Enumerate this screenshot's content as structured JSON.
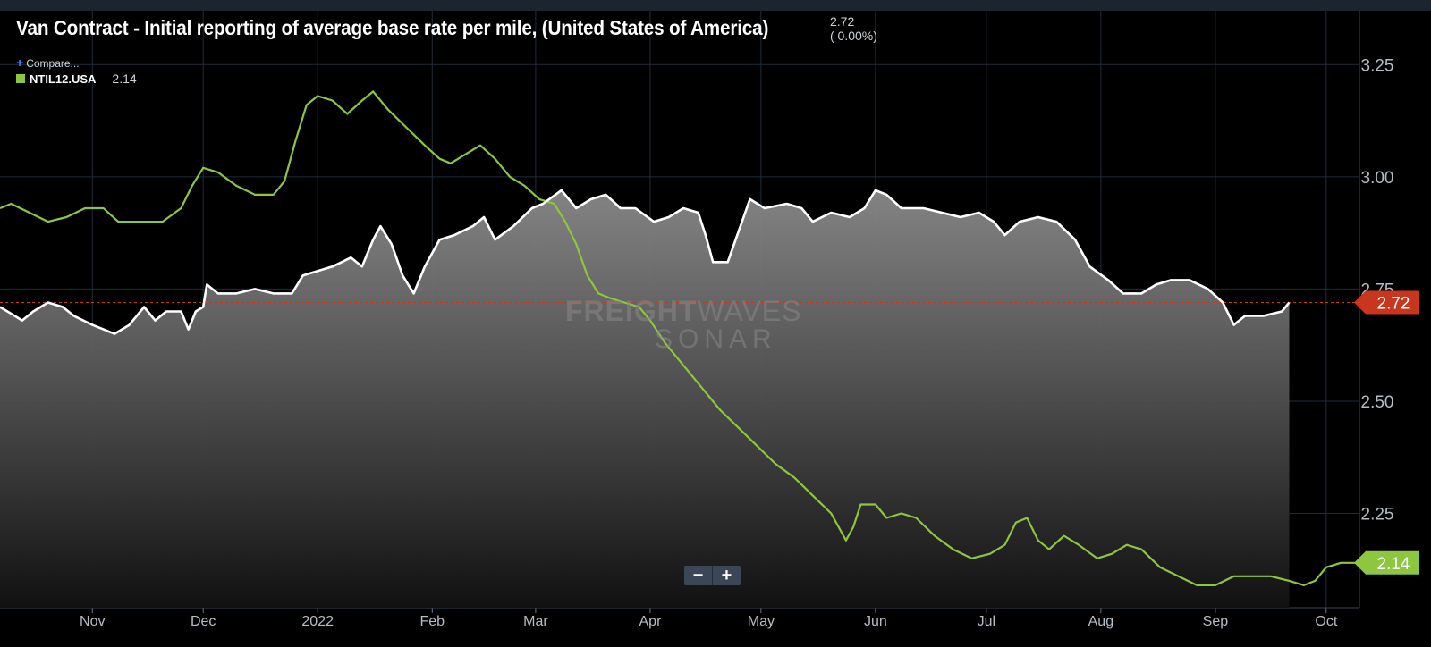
{
  "header": {
    "title": "Van Contract - Initial reporting of average base rate per mile, (United States of America)",
    "value": "2.72",
    "change": "( 0.00%)"
  },
  "legend": {
    "compare_label": "Compare...",
    "series_label": "NTIL12.USA",
    "series_value": "2.14"
  },
  "watermark": {
    "line1_bold": "FREIGHT",
    "line1_light": "WAVES",
    "line2": "SONAR"
  },
  "zoom": {
    "minus": "−",
    "plus": "+"
  },
  "colors": {
    "main": "#ffffff",
    "compare": "#8dc63f",
    "last_badge_main": "#c8361e",
    "last_badge_compare": "#8dc63f",
    "grid": "#1f2d3a"
  },
  "chart_data": {
    "type": "line",
    "y_ticks": [
      "3.25",
      "3.00",
      "2.75",
      "2.50",
      "2.25"
    ],
    "y_tick_values": [
      3.25,
      3.0,
      2.75,
      2.5,
      2.25
    ],
    "ylim": [
      2.04,
      3.37
    ],
    "x_ticks": [
      "Nov",
      "Dec",
      "2022",
      "Feb",
      "Mar",
      "Apr",
      "May",
      "Jun",
      "Jul",
      "Aug",
      "Sep",
      "Oct"
    ],
    "x_tick_dates": [
      "2021-11-01",
      "2021-12-01",
      "2022-01-01",
      "2022-02-01",
      "2022-03-01",
      "2022-04-01",
      "2022-05-01",
      "2022-06-01",
      "2022-07-01",
      "2022-08-01",
      "2022-09-01",
      "2022-10-01"
    ],
    "xlim": [
      "2021-10-07",
      "2022-10-10"
    ],
    "last_value_badges": [
      "2.72",
      "2.14"
    ],
    "reference_line": 2.72,
    "series": [
      {
        "name": "",
        "role": "main",
        "points": [
          [
            "2021-10-07",
            2.71
          ],
          [
            "2021-10-09",
            2.7
          ],
          [
            "2021-10-13",
            2.68
          ],
          [
            "2021-10-16",
            2.7
          ],
          [
            "2021-10-20",
            2.72
          ],
          [
            "2021-10-24",
            2.71
          ],
          [
            "2021-10-27",
            2.69
          ],
          [
            "2021-11-01",
            2.67
          ],
          [
            "2021-11-04",
            2.66
          ],
          [
            "2021-11-07",
            2.65
          ],
          [
            "2021-11-11",
            2.67
          ],
          [
            "2021-11-15",
            2.71
          ],
          [
            "2021-11-18",
            2.68
          ],
          [
            "2021-11-21",
            2.7
          ],
          [
            "2021-11-25",
            2.7
          ],
          [
            "2021-11-27",
            2.66
          ],
          [
            "2021-11-29",
            2.7
          ],
          [
            "2021-12-01",
            2.71
          ],
          [
            "2021-12-02",
            2.76
          ],
          [
            "2021-12-05",
            2.74
          ],
          [
            "2021-12-10",
            2.74
          ],
          [
            "2021-12-15",
            2.75
          ],
          [
            "2021-12-20",
            2.74
          ],
          [
            "2021-12-25",
            2.74
          ],
          [
            "2021-12-28",
            2.78
          ],
          [
            "2022-01-01",
            2.79
          ],
          [
            "2022-01-05",
            2.8
          ],
          [
            "2022-01-10",
            2.82
          ],
          [
            "2022-01-13",
            2.8
          ],
          [
            "2022-01-16",
            2.86
          ],
          [
            "2022-01-18",
            2.89
          ],
          [
            "2022-01-21",
            2.85
          ],
          [
            "2022-01-24",
            2.78
          ],
          [
            "2022-01-27",
            2.74
          ],
          [
            "2022-01-30",
            2.8
          ],
          [
            "2022-02-03",
            2.86
          ],
          [
            "2022-02-07",
            2.87
          ],
          [
            "2022-02-12",
            2.89
          ],
          [
            "2022-02-15",
            2.91
          ],
          [
            "2022-02-18",
            2.86
          ],
          [
            "2022-02-23",
            2.89
          ],
          [
            "2022-02-28",
            2.93
          ],
          [
            "2022-03-03",
            2.94
          ],
          [
            "2022-03-08",
            2.97
          ],
          [
            "2022-03-12",
            2.93
          ],
          [
            "2022-03-16",
            2.95
          ],
          [
            "2022-03-20",
            2.96
          ],
          [
            "2022-03-24",
            2.93
          ],
          [
            "2022-03-28",
            2.93
          ],
          [
            "2022-04-02",
            2.9
          ],
          [
            "2022-04-06",
            2.91
          ],
          [
            "2022-04-10",
            2.93
          ],
          [
            "2022-04-14",
            2.92
          ],
          [
            "2022-04-16",
            2.87
          ],
          [
            "2022-04-18",
            2.81
          ],
          [
            "2022-04-22",
            2.81
          ],
          [
            "2022-04-25",
            2.88
          ],
          [
            "2022-04-28",
            2.95
          ],
          [
            "2022-05-02",
            2.93
          ],
          [
            "2022-05-08",
            2.94
          ],
          [
            "2022-05-12",
            2.93
          ],
          [
            "2022-05-15",
            2.9
          ],
          [
            "2022-05-20",
            2.92
          ],
          [
            "2022-05-25",
            2.91
          ],
          [
            "2022-05-29",
            2.93
          ],
          [
            "2022-06-01",
            2.97
          ],
          [
            "2022-06-04",
            2.96
          ],
          [
            "2022-06-08",
            2.93
          ],
          [
            "2022-06-14",
            2.93
          ],
          [
            "2022-06-19",
            2.92
          ],
          [
            "2022-06-24",
            2.91
          ],
          [
            "2022-06-29",
            2.92
          ],
          [
            "2022-07-03",
            2.9
          ],
          [
            "2022-07-06",
            2.87
          ],
          [
            "2022-07-10",
            2.9
          ],
          [
            "2022-07-15",
            2.91
          ],
          [
            "2022-07-20",
            2.9
          ],
          [
            "2022-07-25",
            2.86
          ],
          [
            "2022-07-29",
            2.8
          ],
          [
            "2022-08-03",
            2.77
          ],
          [
            "2022-08-07",
            2.74
          ],
          [
            "2022-08-12",
            2.74
          ],
          [
            "2022-08-16",
            2.76
          ],
          [
            "2022-08-20",
            2.77
          ],
          [
            "2022-08-25",
            2.77
          ],
          [
            "2022-08-30",
            2.75
          ],
          [
            "2022-09-03",
            2.72
          ],
          [
            "2022-09-06",
            2.67
          ],
          [
            "2022-09-09",
            2.69
          ],
          [
            "2022-09-14",
            2.69
          ],
          [
            "2022-09-19",
            2.7
          ],
          [
            "2022-09-21",
            2.72
          ]
        ]
      },
      {
        "name": "NTIL12.USA",
        "role": "compare",
        "points": [
          [
            "2021-10-07",
            2.93
          ],
          [
            "2021-10-10",
            2.94
          ],
          [
            "2021-10-15",
            2.92
          ],
          [
            "2021-10-20",
            2.9
          ],
          [
            "2021-10-25",
            2.91
          ],
          [
            "2021-10-30",
            2.93
          ],
          [
            "2021-11-04",
            2.93
          ],
          [
            "2021-11-08",
            2.9
          ],
          [
            "2021-11-14",
            2.9
          ],
          [
            "2021-11-20",
            2.9
          ],
          [
            "2021-11-25",
            2.93
          ],
          [
            "2021-11-28",
            2.98
          ],
          [
            "2021-12-01",
            3.02
          ],
          [
            "2021-12-05",
            3.01
          ],
          [
            "2021-12-10",
            2.98
          ],
          [
            "2021-12-15",
            2.96
          ],
          [
            "2021-12-20",
            2.96
          ],
          [
            "2021-12-23",
            2.99
          ],
          [
            "2021-12-26",
            3.08
          ],
          [
            "2021-12-29",
            3.16
          ],
          [
            "2022-01-01",
            3.18
          ],
          [
            "2022-01-05",
            3.17
          ],
          [
            "2022-01-09",
            3.14
          ],
          [
            "2022-01-13",
            3.17
          ],
          [
            "2022-01-16",
            3.19
          ],
          [
            "2022-01-20",
            3.15
          ],
          [
            "2022-01-25",
            3.11
          ],
          [
            "2022-01-30",
            3.07
          ],
          [
            "2022-02-03",
            3.04
          ],
          [
            "2022-02-06",
            3.03
          ],
          [
            "2022-02-10",
            3.05
          ],
          [
            "2022-02-14",
            3.07
          ],
          [
            "2022-02-18",
            3.04
          ],
          [
            "2022-02-22",
            3.0
          ],
          [
            "2022-02-26",
            2.98
          ],
          [
            "2022-03-02",
            2.95
          ],
          [
            "2022-03-06",
            2.94
          ],
          [
            "2022-03-09",
            2.9
          ],
          [
            "2022-03-12",
            2.85
          ],
          [
            "2022-03-15",
            2.78
          ],
          [
            "2022-03-18",
            2.74
          ],
          [
            "2022-03-21",
            2.73
          ],
          [
            "2022-03-25",
            2.72
          ],
          [
            "2022-03-29",
            2.71
          ],
          [
            "2022-04-01",
            2.68
          ],
          [
            "2022-04-05",
            2.63
          ],
          [
            "2022-04-10",
            2.58
          ],
          [
            "2022-04-15",
            2.53
          ],
          [
            "2022-04-20",
            2.48
          ],
          [
            "2022-04-25",
            2.44
          ],
          [
            "2022-04-30",
            2.4
          ],
          [
            "2022-05-05",
            2.36
          ],
          [
            "2022-05-10",
            2.33
          ],
          [
            "2022-05-15",
            2.29
          ],
          [
            "2022-05-20",
            2.25
          ],
          [
            "2022-05-24",
            2.19
          ],
          [
            "2022-05-26",
            2.22
          ],
          [
            "2022-05-28",
            2.27
          ],
          [
            "2022-06-01",
            2.27
          ],
          [
            "2022-06-04",
            2.24
          ],
          [
            "2022-06-08",
            2.25
          ],
          [
            "2022-06-12",
            2.24
          ],
          [
            "2022-06-17",
            2.2
          ],
          [
            "2022-06-22",
            2.17
          ],
          [
            "2022-06-27",
            2.15
          ],
          [
            "2022-07-02",
            2.16
          ],
          [
            "2022-07-06",
            2.18
          ],
          [
            "2022-07-09",
            2.23
          ],
          [
            "2022-07-12",
            2.24
          ],
          [
            "2022-07-15",
            2.19
          ],
          [
            "2022-07-18",
            2.17
          ],
          [
            "2022-07-22",
            2.2
          ],
          [
            "2022-07-26",
            2.18
          ],
          [
            "2022-07-31",
            2.15
          ],
          [
            "2022-08-04",
            2.16
          ],
          [
            "2022-08-08",
            2.18
          ],
          [
            "2022-08-12",
            2.17
          ],
          [
            "2022-08-17",
            2.13
          ],
          [
            "2022-08-22",
            2.11
          ],
          [
            "2022-08-27",
            2.09
          ],
          [
            "2022-09-01",
            2.09
          ],
          [
            "2022-09-06",
            2.11
          ],
          [
            "2022-09-11",
            2.11
          ],
          [
            "2022-09-16",
            2.11
          ],
          [
            "2022-09-21",
            2.1
          ],
          [
            "2022-09-25",
            2.09
          ],
          [
            "2022-09-28",
            2.1
          ],
          [
            "2022-10-01",
            2.13
          ],
          [
            "2022-10-05",
            2.14
          ],
          [
            "2022-10-10",
            2.14
          ]
        ]
      }
    ]
  }
}
